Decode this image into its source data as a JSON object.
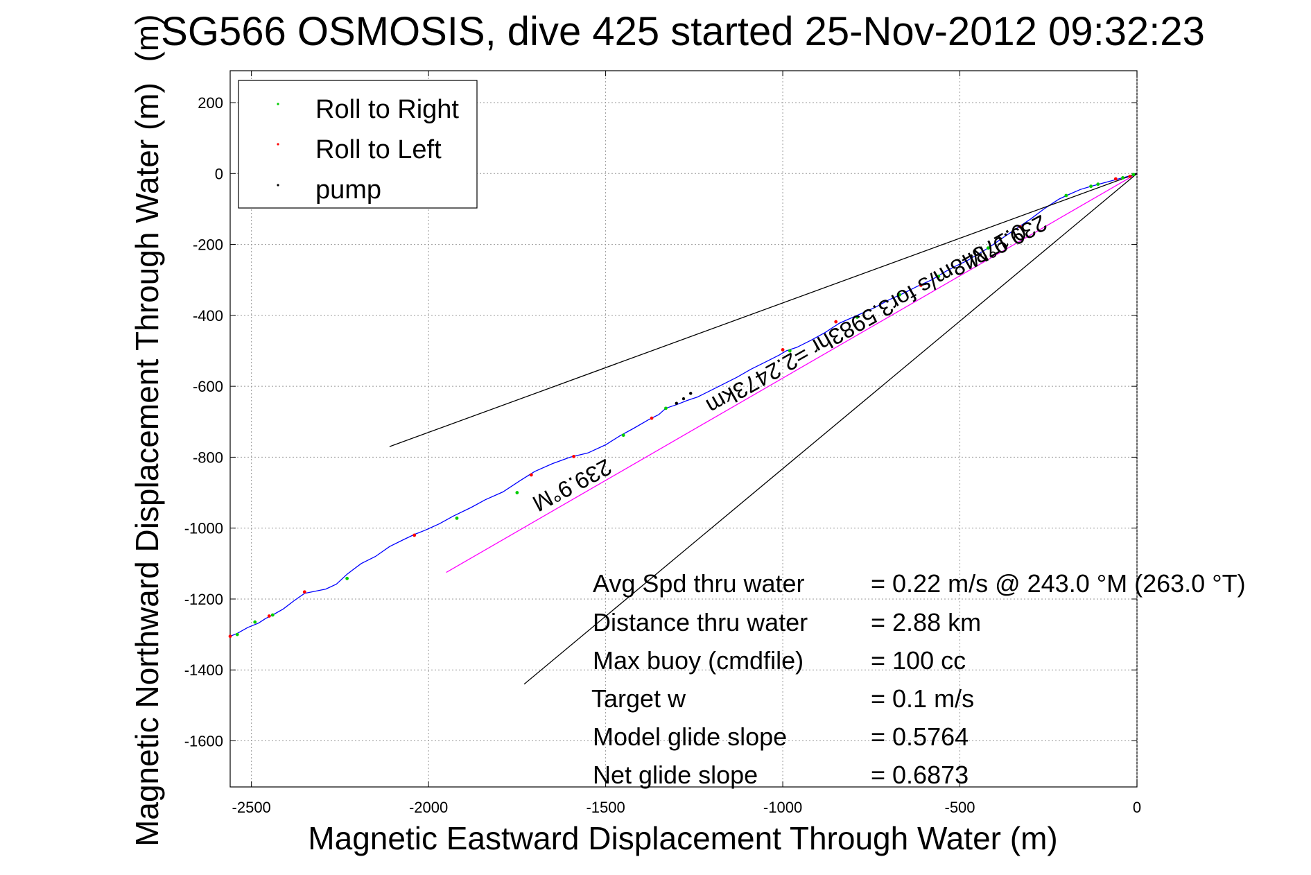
{
  "chart_data": {
    "type": "line",
    "title": "SG566 OSMOSIS, dive 425 started 25-Nov-2012 09:32:23",
    "title_overlap_glyph": "(m)",
    "xlabel": "Magnetic Eastward Displacement Through Water (m)",
    "ylabel": "Magnetic Northward Displacement Through Water (m)",
    "xlim": [
      -2560,
      0
    ],
    "ylim": [
      -1730,
      290
    ],
    "grid": true,
    "xticks": [
      -2500,
      -2000,
      -1500,
      -1000,
      -500,
      0
    ],
    "yticks": [
      200,
      0,
      -200,
      -400,
      -600,
      -800,
      -1000,
      -1200,
      -1400,
      -1600
    ],
    "legend": {
      "position": "top-left",
      "entries": [
        {
          "label": "Roll to Right",
          "color": "#00cc00"
        },
        {
          "label": "Roll to Left",
          "color": "#ff0000"
        },
        {
          "label": "pump",
          "color": "#000000"
        }
      ]
    },
    "series": [
      {
        "kind": "track",
        "color": "#0000ff",
        "x": [
          0,
          -15,
          -40,
          -70,
          -100,
          -130,
          -160,
          -190,
          -220,
          -260,
          -300,
          -340,
          -380,
          -420,
          -450,
          -480,
          -510,
          -540,
          -580,
          -620,
          -660,
          -700,
          -740,
          -790,
          -840,
          -880,
          -920,
          -960,
          -990,
          -1010,
          -1050,
          -1090,
          -1130,
          -1170,
          -1210,
          -1240,
          -1270,
          -1300,
          -1330,
          -1350,
          -1380,
          -1420,
          -1460,
          -1500,
          -1550,
          -1600,
          -1650,
          -1700,
          -1740,
          -1790,
          -1840,
          -1880,
          -1930,
          -1970,
          -2010,
          -2040,
          -2070,
          -2110,
          -2150,
          -2190,
          -2230,
          -2260,
          -2290,
          -2330,
          -2350,
          -2380,
          -2410,
          -2440,
          -2460,
          -2480,
          -2510,
          -2540,
          -2560
        ],
        "y": [
          0,
          -5,
          -12,
          -20,
          -28,
          -36,
          -45,
          -58,
          -72,
          -98,
          -128,
          -155,
          -182,
          -210,
          -228,
          -246,
          -260,
          -276,
          -300,
          -318,
          -338,
          -356,
          -378,
          -400,
          -422,
          -448,
          -470,
          -490,
          -500,
          -512,
          -532,
          -552,
          -575,
          -595,
          -615,
          -630,
          -640,
          -652,
          -662,
          -680,
          -695,
          -718,
          -740,
          -765,
          -788,
          -800,
          -818,
          -840,
          -865,
          -898,
          -920,
          -942,
          -966,
          -988,
          -1006,
          -1018,
          -1032,
          -1052,
          -1080,
          -1100,
          -1130,
          -1158,
          -1172,
          -1180,
          -1184,
          -1205,
          -1228,
          -1245,
          -1255,
          -1268,
          -1280,
          -1297,
          -1305
        ]
      },
      {
        "kind": "net-displacement",
        "color": "#ff00ff",
        "x": [
          0,
          -1950
        ],
        "y": [
          0,
          -1125
        ]
      },
      {
        "kind": "heading-fan",
        "color": "#000000",
        "x": [
          0,
          -2110
        ],
        "y": [
          0,
          -770
        ]
      },
      {
        "kind": "heading-fan",
        "color": "#000000",
        "x": [
          0,
          -1730
        ],
        "y": [
          0,
          -1440
        ]
      }
    ],
    "markers": {
      "right": [
        [
          -10,
          -3
        ],
        [
          -40,
          -12
        ],
        [
          -110,
          -30
        ],
        [
          -130,
          -36
        ],
        [
          -200,
          -62
        ],
        [
          -420,
          -210
        ],
        [
          -560,
          -290
        ],
        [
          -670,
          -342
        ],
        [
          -790,
          -405
        ],
        [
          -980,
          -500
        ],
        [
          -1330,
          -662
        ],
        [
          -1450,
          -738
        ],
        [
          -1750,
          -900
        ],
        [
          -1920,
          -972
        ],
        [
          -2230,
          -1142
        ],
        [
          -2440,
          -1245
        ],
        [
          -2490,
          -1265
        ],
        [
          -2540,
          -1300
        ]
      ],
      "left": [
        [
          -20,
          -8
        ],
        [
          -60,
          -15
        ],
        [
          -330,
          -150
        ],
        [
          -610,
          -315
        ],
        [
          -850,
          -418
        ],
        [
          -1000,
          -497
        ],
        [
          -1370,
          -690
        ],
        [
          -1590,
          -798
        ],
        [
          -1710,
          -850
        ],
        [
          -2040,
          -1020
        ],
        [
          -2350,
          -1180
        ],
        [
          -2450,
          -1248
        ],
        [
          -2560,
          -1305
        ]
      ],
      "pump": [
        [
          -1260,
          -620
        ],
        [
          -1280,
          -635
        ],
        [
          -1300,
          -648
        ]
      ]
    },
    "annotations": [
      {
        "text": "239.9°M"
      },
      {
        "text": "239.9°M"
      },
      {
        "text": "0.17348m/s for3.5983hr =2.2473km"
      }
    ],
    "stats": [
      {
        "label": "Avg Spd thru water",
        "value": "=  0.22 m/s @ 243.0 °M (263.0 °T)"
      },
      {
        "label": "Distance thru water",
        "value": "=  2.88 km"
      },
      {
        "label": "Max buoy (cmdfile)",
        "value": "= 100 cc"
      },
      {
        "label": "Target w",
        "value": "= 0.1 m/s"
      },
      {
        "label": "Model glide slope",
        "value": "= 0.5764"
      },
      {
        "label": "Net glide slope",
        "value": "= 0.6873"
      }
    ]
  }
}
